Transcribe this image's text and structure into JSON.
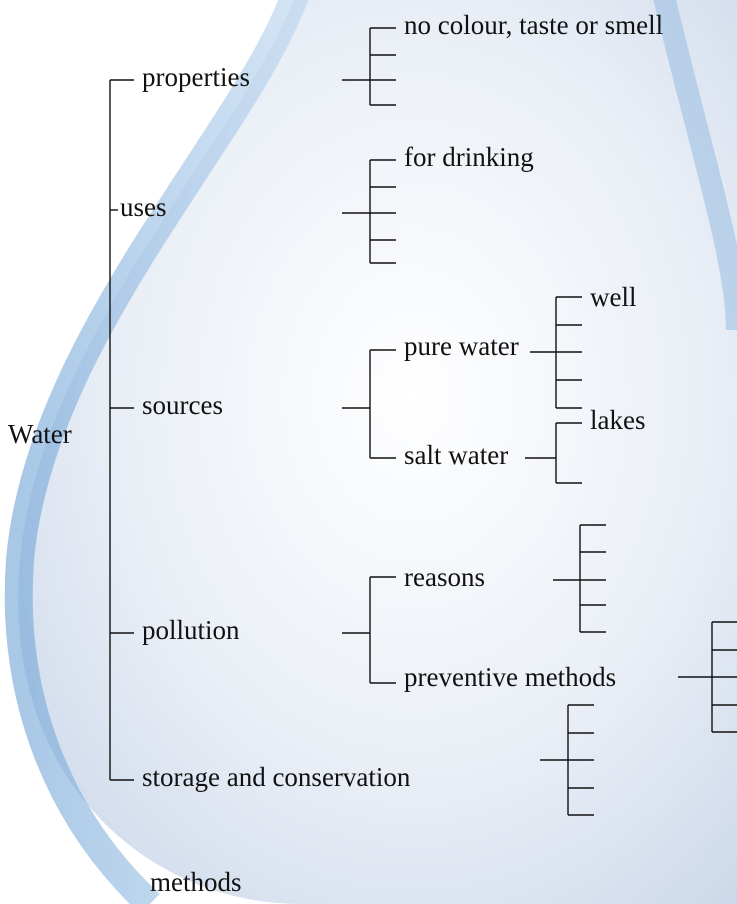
{
  "root": "Water",
  "branches": [
    {
      "label": "properties",
      "children": [
        "no colour, taste or smell"
      ]
    },
    {
      "label": "uses",
      "children": [
        "for drinking"
      ]
    },
    {
      "label": "sources",
      "children": [
        {
          "label": "pure water",
          "children": [
            "well"
          ]
        },
        {
          "label": "salt water",
          "children": [
            "lakes"
          ]
        }
      ]
    },
    {
      "label": "pollution",
      "children": [
        {
          "label": "reasons"
        },
        {
          "label": "preventive methods"
        }
      ]
    },
    {
      "label": [
        "storage and conservation",
        "methods"
      ]
    }
  ]
}
